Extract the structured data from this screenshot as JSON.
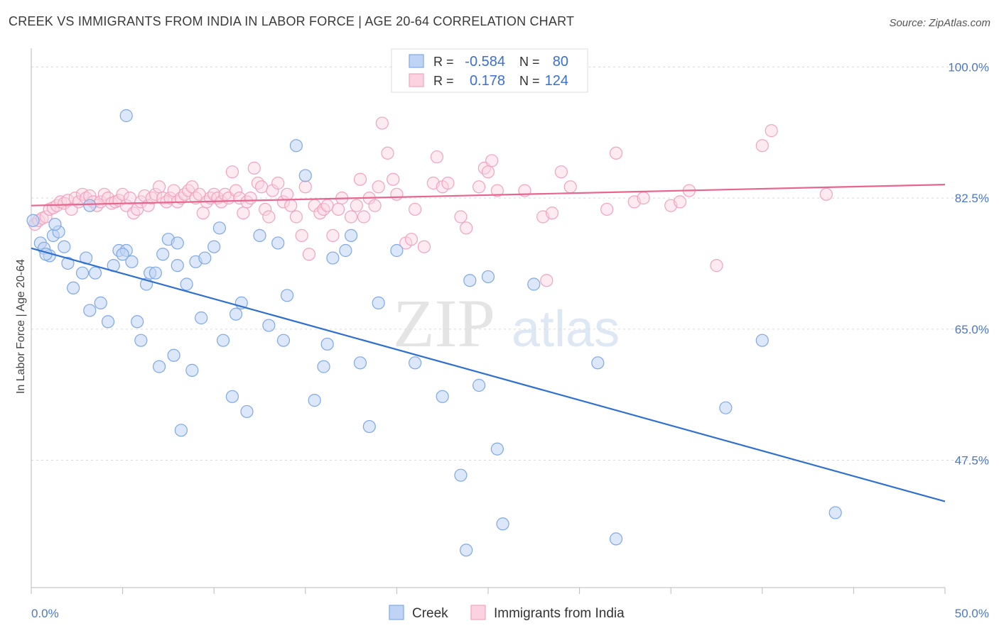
{
  "title": "CREEK VS IMMIGRANTS FROM INDIA IN LABOR FORCE | AGE 20-64 CORRELATION CHART",
  "source": "Source: ZipAtlas.com",
  "watermark": {
    "zip": "ZIP",
    "atlas": "atlas"
  },
  "chart_data": {
    "type": "scatter",
    "ylabel": "In Labor Force | Age 20-64",
    "xlim": [
      0,
      50
    ],
    "ylim": [
      30.5,
      102.5
    ],
    "x_tick_labels": [
      "0.0%",
      "50.0%"
    ],
    "y_ticks": [
      100.0,
      82.5,
      65.0,
      47.5
    ],
    "y_tick_labels": [
      "100.0%",
      "82.5%",
      "65.0%",
      "47.5%"
    ],
    "legend_top": [
      {
        "r_label": "R =",
        "r": "-0.584",
        "n_label": "N =",
        "n": "80"
      },
      {
        "r_label": "R =",
        "r": "0.178",
        "n_label": "N =",
        "n": "124"
      }
    ],
    "series": [
      {
        "name": "Creek",
        "color": "#7fa8e6",
        "line_color": "#2f6fd0",
        "trend": {
          "x": [
            0,
            50
          ],
          "y": [
            75.8,
            42.0
          ]
        },
        "points": [
          [
            0.5,
            76.5
          ],
          [
            0.7,
            75.8
          ],
          [
            1.0,
            74.8
          ],
          [
            1.2,
            77.5
          ],
          [
            1.5,
            78.0
          ],
          [
            0.8,
            75.0
          ],
          [
            1.8,
            76.0
          ],
          [
            2.0,
            73.8
          ],
          [
            2.3,
            70.5
          ],
          [
            2.8,
            72.5
          ],
          [
            3.0,
            74.5
          ],
          [
            3.2,
            67.5
          ],
          [
            3.5,
            72.5
          ],
          [
            3.8,
            68.5
          ],
          [
            4.2,
            66.0
          ],
          [
            4.5,
            73.5
          ],
          [
            4.8,
            75.5
          ],
          [
            5.2,
            75.5
          ],
          [
            5.5,
            74.0
          ],
          [
            5.8,
            66.0
          ],
          [
            6.0,
            63.5
          ],
          [
            6.3,
            71.0
          ],
          [
            6.5,
            72.5
          ],
          [
            6.8,
            72.5
          ],
          [
            7.0,
            60.0
          ],
          [
            7.2,
            75.0
          ],
          [
            7.5,
            77.0
          ],
          [
            7.8,
            61.5
          ],
          [
            8.0,
            76.5
          ],
          [
            8.2,
            51.5
          ],
          [
            8.5,
            71.0
          ],
          [
            8.8,
            59.5
          ],
          [
            9.0,
            74.0
          ],
          [
            9.3,
            66.5
          ],
          [
            9.5,
            74.5
          ],
          [
            10.0,
            76.0
          ],
          [
            10.3,
            78.5
          ],
          [
            10.5,
            63.5
          ],
          [
            11.0,
            56.0
          ],
          [
            11.2,
            67.0
          ],
          [
            11.5,
            68.5
          ],
          [
            11.8,
            54.0
          ],
          [
            12.5,
            77.5
          ],
          [
            13.0,
            65.5
          ],
          [
            13.5,
            76.5
          ],
          [
            13.8,
            63.5
          ],
          [
            14.0,
            69.5
          ],
          [
            15.0,
            85.5
          ],
          [
            15.5,
            55.5
          ],
          [
            14.5,
            89.5
          ],
          [
            16.0,
            60.0
          ],
          [
            16.2,
            63.0
          ],
          [
            16.5,
            74.5
          ],
          [
            17.2,
            75.5
          ],
          [
            17.5,
            77.5
          ],
          [
            18.0,
            60.5
          ],
          [
            18.5,
            52.0
          ],
          [
            19.0,
            68.5
          ],
          [
            20.0,
            75.5
          ],
          [
            21.0,
            60.5
          ],
          [
            22.5,
            56.0
          ],
          [
            23.5,
            45.5
          ],
          [
            23.8,
            35.5
          ],
          [
            24.0,
            71.5
          ],
          [
            24.5,
            57.5
          ],
          [
            25.0,
            72.0
          ],
          [
            25.5,
            49.0
          ],
          [
            25.8,
            39.0
          ],
          [
            27.5,
            71.0
          ],
          [
            31.0,
            60.5
          ],
          [
            32.0,
            37.0
          ],
          [
            38.0,
            54.5
          ],
          [
            40.0,
            63.5
          ],
          [
            44.0,
            40.5
          ],
          [
            5.2,
            93.5
          ],
          [
            0.1,
            79.5
          ],
          [
            1.3,
            79.0
          ],
          [
            3.2,
            81.5
          ],
          [
            5.0,
            75.0
          ],
          [
            8.0,
            73.5
          ]
        ]
      },
      {
        "name": "Immigrants from India",
        "color": "#f2a3bd",
        "line_color": "#e8658e",
        "trend": {
          "x": [
            0,
            50
          ],
          "y": [
            81.5,
            84.3
          ]
        },
        "points": [
          [
            0.2,
            79.0
          ],
          [
            0.4,
            79.5
          ],
          [
            0.6,
            79.8
          ],
          [
            0.8,
            80.0
          ],
          [
            1.0,
            81.0
          ],
          [
            1.2,
            81.2
          ],
          [
            1.4,
            81.5
          ],
          [
            1.6,
            82.0
          ],
          [
            1.8,
            81.8
          ],
          [
            2.0,
            82.2
          ],
          [
            2.2,
            81.0
          ],
          [
            2.4,
            82.5
          ],
          [
            2.6,
            82.0
          ],
          [
            2.8,
            83.0
          ],
          [
            3.0,
            82.5
          ],
          [
            3.2,
            82.8
          ],
          [
            3.4,
            82.0
          ],
          [
            3.6,
            81.5
          ],
          [
            3.8,
            82.0
          ],
          [
            4.0,
            83.0
          ],
          [
            4.2,
            82.5
          ],
          [
            4.4,
            81.8
          ],
          [
            4.6,
            82.0
          ],
          [
            4.8,
            82.2
          ],
          [
            5.0,
            83.0
          ],
          [
            5.2,
            81.5
          ],
          [
            5.4,
            82.5
          ],
          [
            5.6,
            80.5
          ],
          [
            5.8,
            81.0
          ],
          [
            6.0,
            82.0
          ],
          [
            6.2,
            82.8
          ],
          [
            6.4,
            81.5
          ],
          [
            6.6,
            82.5
          ],
          [
            6.8,
            83.0
          ],
          [
            7.0,
            84.0
          ],
          [
            7.2,
            82.5
          ],
          [
            7.4,
            82.0
          ],
          [
            7.6,
            82.5
          ],
          [
            7.8,
            83.5
          ],
          [
            8.0,
            82.0
          ],
          [
            8.2,
            82.5
          ],
          [
            8.4,
            83.0
          ],
          [
            8.6,
            83.5
          ],
          [
            8.8,
            84.0
          ],
          [
            9.0,
            82.5
          ],
          [
            9.2,
            83.0
          ],
          [
            9.4,
            80.5
          ],
          [
            9.6,
            82.0
          ],
          [
            9.8,
            82.5
          ],
          [
            10.0,
            83.0
          ],
          [
            10.2,
            82.5
          ],
          [
            10.4,
            82.0
          ],
          [
            10.6,
            83.0
          ],
          [
            10.8,
            82.5
          ],
          [
            11.0,
            86.0
          ],
          [
            11.2,
            83.5
          ],
          [
            11.4,
            82.5
          ],
          [
            11.6,
            80.5
          ],
          [
            11.8,
            82.0
          ],
          [
            12.0,
            82.5
          ],
          [
            12.2,
            86.5
          ],
          [
            12.4,
            84.5
          ],
          [
            12.6,
            84.0
          ],
          [
            12.8,
            81.0
          ],
          [
            13.0,
            80.0
          ],
          [
            13.2,
            83.5
          ],
          [
            13.5,
            84.5
          ],
          [
            13.8,
            82.0
          ],
          [
            14.0,
            83.0
          ],
          [
            14.2,
            81.5
          ],
          [
            14.5,
            80.0
          ],
          [
            14.8,
            77.5
          ],
          [
            15.0,
            84.0
          ],
          [
            15.2,
            75.0
          ],
          [
            15.5,
            81.5
          ],
          [
            15.8,
            80.5
          ],
          [
            16.0,
            81.0
          ],
          [
            16.2,
            81.5
          ],
          [
            16.5,
            77.5
          ],
          [
            16.8,
            81.0
          ],
          [
            17.0,
            82.5
          ],
          [
            17.5,
            80.0
          ],
          [
            17.8,
            81.5
          ],
          [
            18.0,
            85.0
          ],
          [
            18.2,
            80.0
          ],
          [
            18.5,
            82.5
          ],
          [
            18.8,
            81.5
          ],
          [
            19.0,
            84.0
          ],
          [
            19.2,
            92.5
          ],
          [
            19.5,
            88.5
          ],
          [
            19.8,
            85.0
          ],
          [
            20.0,
            83.0
          ],
          [
            20.5,
            76.5
          ],
          [
            20.8,
            77.0
          ],
          [
            21.0,
            81.0
          ],
          [
            21.5,
            76.0
          ],
          [
            22.0,
            84.5
          ],
          [
            22.2,
            88.0
          ],
          [
            22.5,
            84.0
          ],
          [
            22.8,
            84.5
          ],
          [
            23.5,
            80.0
          ],
          [
            23.8,
            78.5
          ],
          [
            24.5,
            84.0
          ],
          [
            24.8,
            86.5
          ],
          [
            25.0,
            86.0
          ],
          [
            25.2,
            87.5
          ],
          [
            25.5,
            83.5
          ],
          [
            27.0,
            83.5
          ],
          [
            28.0,
            80.0
          ],
          [
            28.2,
            71.5
          ],
          [
            28.5,
            80.5
          ],
          [
            29.0,
            86.0
          ],
          [
            29.5,
            84.0
          ],
          [
            31.5,
            81.0
          ],
          [
            32.0,
            88.5
          ],
          [
            33.0,
            82.0
          ],
          [
            33.5,
            82.5
          ],
          [
            35.0,
            81.5
          ],
          [
            35.5,
            82.0
          ],
          [
            36.0,
            83.5
          ],
          [
            37.5,
            73.5
          ],
          [
            40.0,
            89.5
          ],
          [
            40.5,
            91.5
          ],
          [
            43.5,
            83.0
          ]
        ]
      }
    ]
  },
  "bottom_legend": [
    {
      "label": "Creek"
    },
    {
      "label": "Immigrants from India"
    }
  ]
}
